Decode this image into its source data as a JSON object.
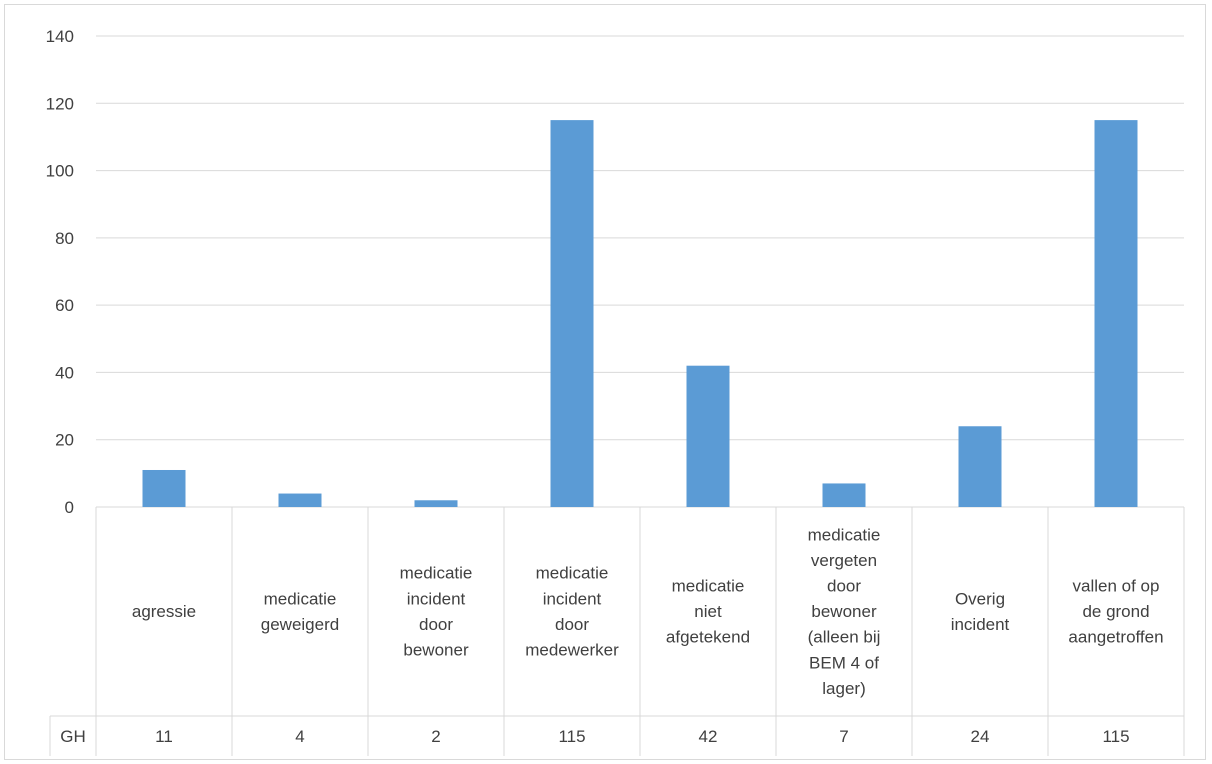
{
  "chart_data": {
    "type": "bar",
    "title": "",
    "xlabel": "",
    "ylabel": "",
    "ylim": [
      0,
      140
    ],
    "yticks": [
      0,
      20,
      40,
      60,
      80,
      100,
      120,
      140
    ],
    "grid": true,
    "legend": "none",
    "categories": [
      [
        "agressie"
      ],
      [
        "medicatie",
        "geweigerd"
      ],
      [
        "medicatie",
        "incident",
        "door",
        "bewoner"
      ],
      [
        "medicatie",
        "incident",
        "door",
        "medewerker"
      ],
      [
        "medicatie",
        "niet",
        "afgetekend"
      ],
      [
        "medicatie",
        "vergeten",
        "door",
        "bewoner",
        "(alleen bij",
        "BEM 4 of",
        "lager)"
      ],
      [
        "Overig",
        "incident"
      ],
      [
        "vallen of op",
        "de grond",
        "aangetroffen"
      ]
    ],
    "series": [
      {
        "name": "GH",
        "values": [
          11,
          4,
          2,
          115,
          42,
          7,
          24,
          115
        ]
      }
    ],
    "data_table": true,
    "colors": {
      "bar": "#5b9bd5",
      "grid": "#d9d9d9",
      "text": "#404040"
    }
  }
}
